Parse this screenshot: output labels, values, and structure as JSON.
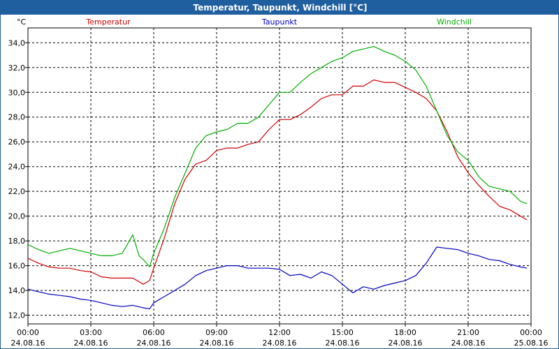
{
  "window": {
    "title": "Temperatur, Taupunkt, Windchill [°C]"
  },
  "colors": {
    "temperatur": "#d00000",
    "taupunkt": "#0000c0",
    "windchill": "#00b000",
    "titlebar": "#1f5fa0",
    "grid": "#000000"
  },
  "chart_data": {
    "type": "line",
    "title": "Temperatur, Taupunkt, Windchill [°C]",
    "ylabel": "°C",
    "ylim": [
      11.3,
      35.2
    ],
    "xlim": [
      0,
      24
    ],
    "grid": true,
    "legend_placement": "top",
    "yticks": [
      "12,0",
      "14,0",
      "16,0",
      "18,0",
      "20,0",
      "22,0",
      "24,0",
      "26,0",
      "28,0",
      "30,0",
      "32,0",
      "34,0"
    ],
    "ytick_values": [
      12,
      14,
      16,
      18,
      20,
      22,
      24,
      26,
      28,
      30,
      32,
      34
    ],
    "xticks": [
      {
        "time": "00:00",
        "date": "24.08.16"
      },
      {
        "time": "03:00",
        "date": "24.08.16"
      },
      {
        "time": "06:00",
        "date": "24.08.16"
      },
      {
        "time": "09:00",
        "date": "24.08.16"
      },
      {
        "time": "12:00",
        "date": "24.08.16"
      },
      {
        "time": "15:00",
        "date": "24.08.16"
      },
      {
        "time": "18:00",
        "date": "24.08.16"
      },
      {
        "time": "21:00",
        "date": "24.08.16"
      },
      {
        "time": "00:00",
        "date": "25.08.16"
      }
    ],
    "xtick_hours": [
      0,
      3,
      6,
      9,
      12,
      15,
      18,
      21,
      24
    ],
    "series": [
      {
        "name": "Temperatur",
        "color": "#d00000",
        "x": [
          0,
          0.5,
          1,
          1.5,
          2,
          2.5,
          3,
          3.5,
          4,
          4.5,
          5,
          5.5,
          5.8,
          6,
          6.5,
          7,
          7.5,
          8,
          8.5,
          9,
          9.5,
          10,
          10.5,
          11,
          11.5,
          12,
          12.5,
          13,
          13.5,
          14,
          14.5,
          15,
          15.5,
          16,
          16.5,
          17,
          17.5,
          18,
          18.5,
          19,
          19.5,
          20,
          20.5,
          21,
          21.5,
          22,
          22.5,
          23,
          23.5,
          23.8
        ],
        "values": [
          16.6,
          16.2,
          15.9,
          15.8,
          15.8,
          15.6,
          15.5,
          15.1,
          15.0,
          15.0,
          15.0,
          14.5,
          14.8,
          15.8,
          18.2,
          21.0,
          23.0,
          24.2,
          24.5,
          25.3,
          25.5,
          25.5,
          25.8,
          26.0,
          27.0,
          27.8,
          27.8,
          28.2,
          28.8,
          29.5,
          29.8,
          29.8,
          30.5,
          30.5,
          31.0,
          30.8,
          30.8,
          30.4,
          30.0,
          29.5,
          28.5,
          26.8,
          24.8,
          23.5,
          22.5,
          21.6,
          20.8,
          20.5,
          20.0,
          19.7
        ]
      },
      {
        "name": "Taupunkt",
        "color": "#0000c0",
        "x": [
          0,
          0.5,
          1,
          1.5,
          2,
          2.5,
          3,
          3.5,
          4,
          4.5,
          5,
          5.5,
          5.8,
          6,
          6.5,
          7,
          7.5,
          8,
          8.5,
          9,
          9.5,
          10,
          10.5,
          11,
          11.5,
          12,
          12.5,
          13,
          13.5,
          14,
          14.5,
          15,
          15.5,
          16,
          16.5,
          17,
          17.5,
          18,
          18.5,
          19,
          19.5,
          20,
          20.5,
          21,
          21.5,
          22,
          22.5,
          23,
          23.5,
          23.8
        ],
        "values": [
          14.1,
          13.9,
          13.7,
          13.6,
          13.5,
          13.3,
          13.2,
          13.0,
          12.8,
          12.7,
          12.8,
          12.6,
          12.5,
          13.0,
          13.5,
          14.0,
          14.5,
          15.2,
          15.6,
          15.8,
          16.0,
          16.0,
          15.8,
          15.8,
          15.8,
          15.7,
          15.2,
          15.3,
          15.0,
          15.5,
          15.2,
          14.5,
          13.8,
          14.3,
          14.1,
          14.4,
          14.6,
          14.8,
          15.2,
          16.2,
          17.5,
          17.4,
          17.3,
          17.0,
          16.8,
          16.5,
          16.4,
          16.1,
          15.9,
          15.8
        ]
      },
      {
        "name": "Windchill",
        "color": "#00b000",
        "x": [
          0,
          0.5,
          1,
          1.5,
          2,
          2.5,
          3,
          3.5,
          4,
          4.5,
          5,
          5.3,
          5.5,
          5.8,
          6,
          6.5,
          7,
          7.5,
          8,
          8.5,
          9,
          9.5,
          10,
          10.5,
          11,
          11.5,
          12,
          12.5,
          13,
          13.5,
          14,
          14.5,
          15,
          15.5,
          16,
          16.5,
          17,
          17.5,
          18,
          18.5,
          19,
          19.5,
          20,
          20.5,
          21,
          21.5,
          22,
          22.5,
          23,
          23.5,
          23.8
        ],
        "values": [
          17.7,
          17.3,
          17.0,
          17.2,
          17.4,
          17.2,
          17.0,
          16.8,
          16.8,
          17.0,
          18.5,
          16.8,
          16.5,
          15.9,
          17.0,
          19.0,
          21.5,
          23.5,
          25.5,
          26.5,
          26.8,
          27.0,
          27.5,
          27.5,
          28.0,
          29.0,
          30.0,
          30.0,
          30.8,
          31.5,
          32.0,
          32.5,
          32.8,
          33.3,
          33.5,
          33.7,
          33.3,
          33.0,
          32.5,
          31.8,
          30.5,
          28.5,
          26.5,
          25.2,
          24.5,
          23.2,
          22.4,
          22.2,
          22.0,
          21.2,
          21.0
        ]
      }
    ]
  }
}
